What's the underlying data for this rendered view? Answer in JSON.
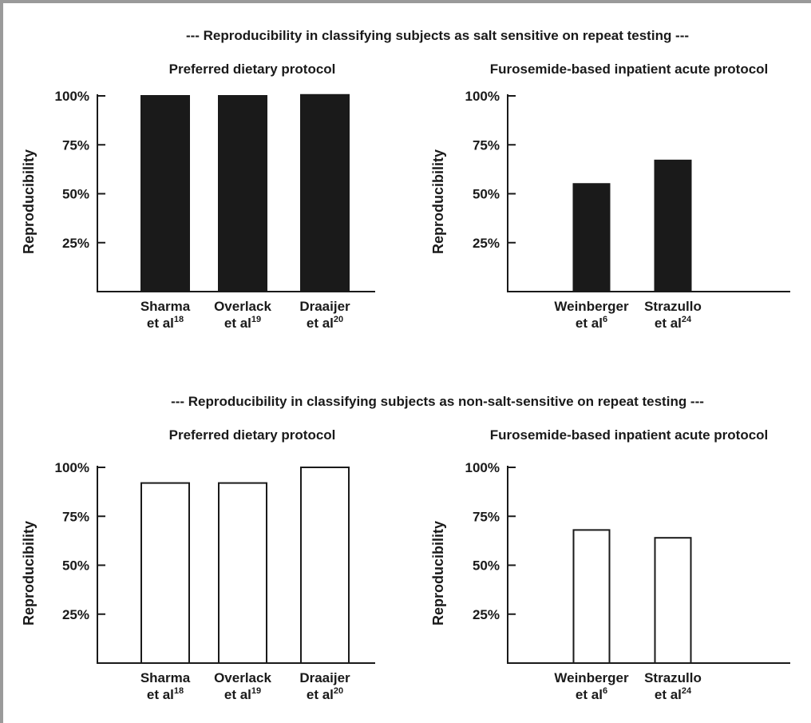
{
  "sections": [
    {
      "title": "--- Reproducibility in classifying subjects as salt sensitive on repeat testing ---",
      "bar_color": "#1a1a1a"
    },
    {
      "title": "--- Reproducibility in classifying subjects as non-salt-sensitive on repeat testing ---",
      "bar_color": "#ffffff"
    }
  ],
  "chart_data": [
    {
      "type": "bar",
      "title": "Preferred dietary protocol",
      "ylabel": "Reproducibility",
      "ylim": [
        0,
        100
      ],
      "yticks": [
        "25%",
        "50%",
        "75%",
        "100%"
      ],
      "categories": [
        {
          "name": "Sharma",
          "line2": "et al",
          "sup": "18"
        },
        {
          "name": "Overlack",
          "line2": "et al",
          "sup": "19"
        },
        {
          "name": "Draaijer",
          "line2": "et al",
          "sup": "20"
        }
      ],
      "values": [
        100,
        100,
        100.5
      ],
      "bar_fill": "#1a1a1a"
    },
    {
      "type": "bar",
      "title": "Furosemide-based inpatient acute protocol",
      "ylabel": "Reproducibility",
      "ylim": [
        0,
        100
      ],
      "yticks": [
        "25%",
        "50%",
        "75%",
        "100%"
      ],
      "categories": [
        {
          "name": "Weinberger",
          "line2": "et al",
          "sup": "6"
        },
        {
          "name": "Strazullo",
          "line2": "et al",
          "sup": "24"
        }
      ],
      "values": [
        55,
        67
      ],
      "bar_fill": "#1a1a1a"
    },
    {
      "type": "bar",
      "title": "Preferred dietary protocol",
      "ylabel": "Reproducibility",
      "ylim": [
        0,
        100
      ],
      "yticks": [
        "25%",
        "50%",
        "75%",
        "100%"
      ],
      "categories": [
        {
          "name": "Sharma",
          "line2": "et al",
          "sup": "18"
        },
        {
          "name": "Overlack",
          "line2": "et al",
          "sup": "19"
        },
        {
          "name": "Draaijer",
          "line2": "et al",
          "sup": "20"
        }
      ],
      "values": [
        92,
        92,
        100
      ],
      "bar_fill": "#ffffff"
    },
    {
      "type": "bar",
      "title": "Furosemide-based inpatient acute protocol",
      "ylabel": "Reproducibility",
      "ylim": [
        0,
        100
      ],
      "yticks": [
        "25%",
        "50%",
        "75%",
        "100%"
      ],
      "categories": [
        {
          "name": "Weinberger",
          "line2": "et al",
          "sup": "6"
        },
        {
          "name": "Strazullo",
          "line2": "et al",
          "sup": "24"
        }
      ],
      "values": [
        68,
        64
      ],
      "bar_fill": "#ffffff"
    }
  ]
}
